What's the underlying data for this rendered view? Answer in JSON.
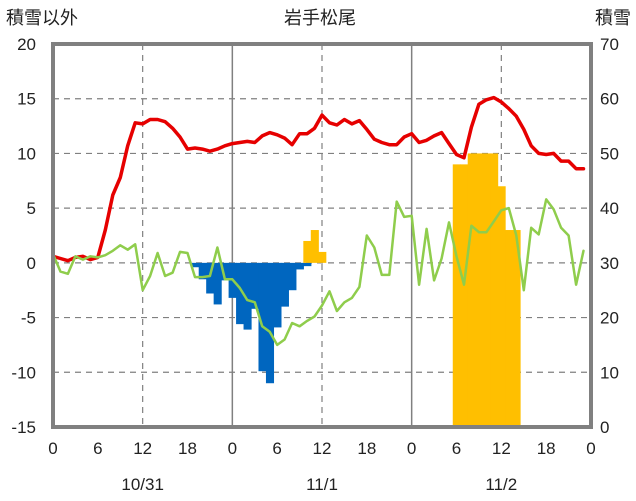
{
  "chart_data": {
    "type": "bar+line",
    "title": "岩手松尾",
    "ylabel_left": "積雪以外",
    "ylabel_right": "積雪",
    "ylim_left": [
      -15,
      20
    ],
    "ylim_right": [
      0,
      70
    ],
    "yticks_left": [
      "-15",
      "-10",
      "-5",
      "0",
      "5",
      "10",
      "15",
      "20"
    ],
    "yticks_right": [
      "0",
      "10",
      "20",
      "30",
      "40",
      "50",
      "60",
      "70"
    ],
    "xlim_hours": [
      0,
      72
    ],
    "xtick_labels": [
      "0",
      "6",
      "12",
      "18",
      "0",
      "6",
      "12",
      "18",
      "0",
      "6",
      "12",
      "18",
      "0"
    ],
    "date_labels": [
      {
        "label": "10/31",
        "hour": 12
      },
      {
        "label": "11/1",
        "hour": 36
      },
      {
        "label": "11/2",
        "hour": 60
      }
    ],
    "day_boundaries": [
      24,
      48
    ],
    "grid_hours": [
      12,
      36,
      60
    ],
    "colors": {
      "red": "#e60000",
      "green": "#8fcd4c",
      "blue": "#0066bf",
      "orange": "#ffbf00",
      "purple": "#7030a0",
      "grid": "#808080",
      "frame": "#808080"
    },
    "series": [
      {
        "type": "line",
        "color": "red",
        "axis": "left",
        "x": [
          0,
          1,
          2,
          3,
          4,
          5,
          6,
          7,
          8,
          9,
          10,
          11,
          12,
          13,
          14,
          15,
          16,
          17,
          18,
          19,
          20,
          21,
          22,
          23,
          24,
          25,
          26,
          27,
          28,
          29,
          30,
          31,
          32,
          33,
          34,
          35,
          36,
          37,
          38,
          39,
          40,
          41,
          42,
          43,
          44,
          45,
          46,
          47,
          48,
          49,
          50,
          51,
          52,
          53,
          54,
          55,
          56,
          57,
          58,
          59,
          60,
          61,
          62,
          63,
          64,
          65,
          66,
          67,
          68,
          69,
          70,
          71
        ],
        "values": [
          0.6,
          0.4,
          0.2,
          0.5,
          0.6,
          0.3,
          0.5,
          3.0,
          6.2,
          7.8,
          10.7,
          12.8,
          12.7,
          13.1,
          13.1,
          12.9,
          12.3,
          11.5,
          10.4,
          10.5,
          10.4,
          10.2,
          10.4,
          10.7,
          10.9,
          11.0,
          11.1,
          11.0,
          11.6,
          11.9,
          11.7,
          11.4,
          10.8,
          11.8,
          11.8,
          12.3,
          13.5,
          12.8,
          12.6,
          13.1,
          12.7,
          13.0,
          12.2,
          11.3,
          11.0,
          10.8,
          10.8,
          11.5,
          11.8,
          11.0,
          11.2,
          11.6,
          11.9,
          10.9,
          9.9,
          9.6,
          12.4,
          14.5,
          14.9,
          15.1,
          14.7,
          14.1,
          13.4,
          12.2,
          10.7,
          10.0,
          9.9,
          10.0,
          9.3,
          9.3,
          8.6,
          8.6
        ]
      },
      {
        "type": "line",
        "color": "green",
        "axis": "left",
        "x": [
          0,
          1,
          2,
          3,
          4,
          5,
          6,
          7,
          8,
          9,
          10,
          11,
          12,
          13,
          14,
          15,
          16,
          17,
          18,
          19,
          20,
          21,
          22,
          23,
          24,
          25,
          26,
          27,
          28,
          29,
          30,
          31,
          32,
          33,
          34,
          35,
          36,
          37,
          38,
          39,
          40,
          41,
          42,
          43,
          44,
          45,
          46,
          47,
          48,
          49,
          50,
          51,
          52,
          53,
          54,
          55,
          56,
          57,
          58,
          59,
          60,
          61,
          62,
          63,
          64,
          65,
          66,
          67,
          68,
          69,
          70,
          71
        ],
        "values": [
          0.8,
          -0.8,
          -1.0,
          0.6,
          0.3,
          0.6,
          0.5,
          0.7,
          1.1,
          1.6,
          1.2,
          1.7,
          -2.5,
          -1.2,
          0.9,
          -1.2,
          -0.9,
          1.0,
          0.9,
          -1.3,
          -1.3,
          -1.2,
          1.4,
          -1.5,
          -1.5,
          -2.3,
          -3.4,
          -3.6,
          -5.8,
          -6.3,
          -7.5,
          -7.0,
          -5.5,
          -5.8,
          -5.3,
          -4.9,
          -3.9,
          -2.6,
          -4.4,
          -3.6,
          -3.2,
          -2.2,
          2.5,
          1.4,
          -1.1,
          -1.1,
          5.6,
          4.2,
          4.3,
          -2.0,
          3.1,
          -1.6,
          0.4,
          3.7,
          0.6,
          -2.0,
          3.4,
          2.8,
          2.8,
          3.8,
          4.8,
          5.0,
          2.5,
          -2.5,
          3.2,
          2.6,
          5.8,
          4.9,
          3.2,
          2.5,
          -2.0,
          1.1
        ]
      },
      {
        "type": "bar",
        "color": "blue",
        "axis": "left",
        "x": [
          19,
          20,
          21,
          22,
          23,
          24,
          25,
          26,
          27,
          28,
          29,
          30,
          31,
          32,
          33,
          34
        ],
        "values": [
          -0.4,
          -1.5,
          -2.8,
          -3.8,
          -1.6,
          -3.2,
          -5.6,
          -6.1,
          -4.2,
          -9.9,
          -11.0,
          -5.9,
          -4.0,
          -2.5,
          -0.6,
          -0.3
        ]
      },
      {
        "type": "bar",
        "color": "orange",
        "axis": "left",
        "x": [
          34,
          35,
          36
        ],
        "values": [
          2.0,
          3.0,
          1.0
        ]
      },
      {
        "type": "bar",
        "color": "orange",
        "axis": "right",
        "x": [
          54,
          55,
          56,
          57,
          58,
          59,
          60,
          61,
          62
        ],
        "values": [
          48,
          48,
          50,
          50,
          50,
          50,
          44,
          36,
          36
        ]
      },
      {
        "type": "line",
        "color": "purple",
        "axis": "right",
        "x": [
          0,
          71
        ],
        "values": [
          0,
          0
        ]
      }
    ]
  }
}
